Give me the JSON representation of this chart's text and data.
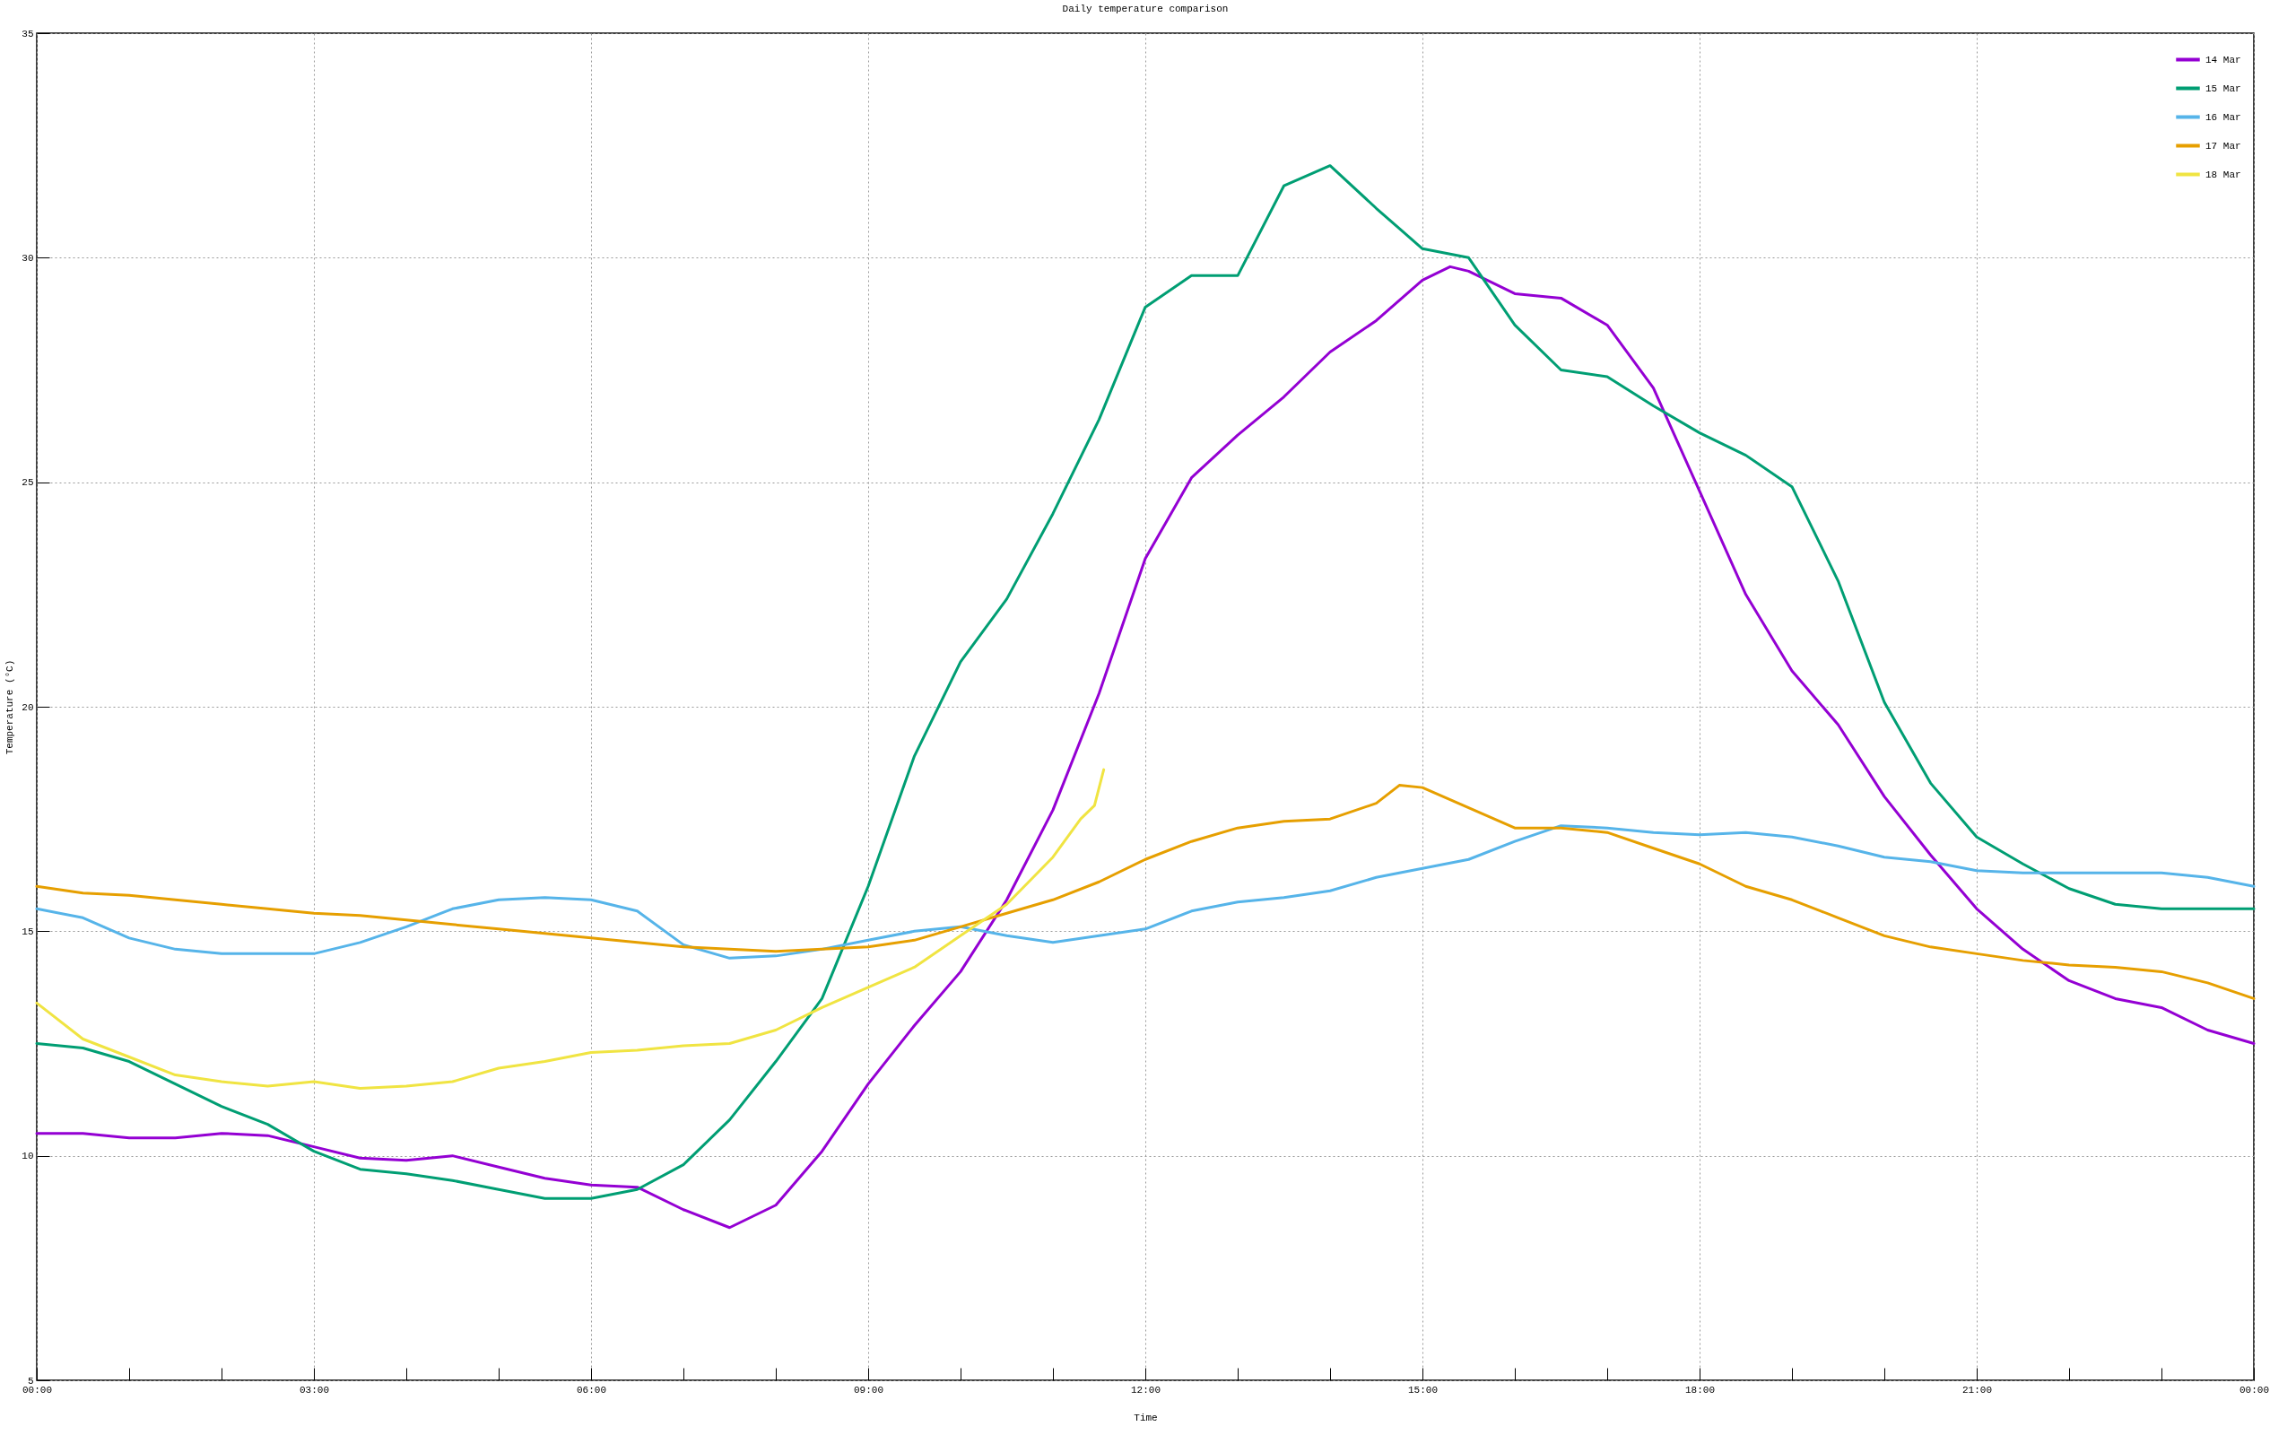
{
  "chart_data": {
    "type": "line",
    "title": "Daily temperature comparison",
    "xlabel": "Time",
    "ylabel": "Temperature (°C)",
    "xlim": [
      0,
      24
    ],
    "xticks": [
      {
        "value": 0,
        "label": "00:00"
      },
      {
        "value": 1,
        "label": null
      },
      {
        "value": 2,
        "label": null
      },
      {
        "value": 3,
        "label": "03:00"
      },
      {
        "value": 4,
        "label": null
      },
      {
        "value": 5,
        "label": null
      },
      {
        "value": 6,
        "label": "06:00"
      },
      {
        "value": 7,
        "label": null
      },
      {
        "value": 8,
        "label": null
      },
      {
        "value": 9,
        "label": "09:00"
      },
      {
        "value": 10,
        "label": null
      },
      {
        "value": 11,
        "label": null
      },
      {
        "value": 12,
        "label": "12:00"
      },
      {
        "value": 13,
        "label": null
      },
      {
        "value": 14,
        "label": null
      },
      {
        "value": 15,
        "label": "15:00"
      },
      {
        "value": 16,
        "label": null
      },
      {
        "value": 17,
        "label": null
      },
      {
        "value": 18,
        "label": "18:00"
      },
      {
        "value": 19,
        "label": null
      },
      {
        "value": 20,
        "label": null
      },
      {
        "value": 21,
        "label": "21:00"
      },
      {
        "value": 22,
        "label": null
      },
      {
        "value": 23,
        "label": null
      },
      {
        "value": 24,
        "label": "00:00"
      }
    ],
    "ylim": [
      5,
      35
    ],
    "yticks": [
      5,
      10,
      15,
      20,
      25,
      30,
      35
    ],
    "grid": true,
    "legend": "top right",
    "line_style": "solid",
    "series": [
      {
        "name": "14 Mar",
        "color": "#9400d3",
        "x": [
          0,
          0.5,
          1,
          1.5,
          2,
          2.5,
          3,
          3.5,
          4,
          4.5,
          5,
          5.5,
          6,
          6.5,
          7,
          7.5,
          8,
          8.5,
          9,
          9.5,
          10,
          10.5,
          11,
          11.5,
          12,
          12.5,
          13,
          13.5,
          14,
          14.5,
          15,
          15.3,
          15.5,
          16,
          16.5,
          17,
          17.5,
          18,
          18.5,
          19,
          19.5,
          20,
          20.5,
          21,
          21.5,
          22,
          22.5,
          23,
          23.5,
          24
        ],
        "values": [
          10.5,
          10.5,
          10.4,
          10.4,
          10.5,
          10.45,
          10.2,
          9.95,
          9.9,
          10.0,
          9.75,
          9.5,
          9.35,
          9.3,
          8.8,
          8.4,
          8.9,
          10.1,
          11.6,
          12.9,
          14.1,
          15.7,
          17.7,
          20.3,
          23.3,
          25.1,
          26.05,
          26.9,
          27.9,
          28.6,
          29.5,
          29.8,
          29.7,
          29.2,
          29.1,
          28.5,
          27.1,
          24.8,
          22.5,
          20.8,
          19.6,
          18.0,
          16.7,
          15.5,
          14.6,
          13.9,
          13.5,
          13.3,
          12.8,
          12.5
        ]
      },
      {
        "name": "15 Mar",
        "color": "#009e73",
        "x": [
          0,
          0.5,
          1,
          1.5,
          2,
          2.5,
          3,
          3.5,
          4,
          4.5,
          5,
          5.5,
          6,
          6.5,
          7,
          7.5,
          8,
          8.5,
          9,
          9.5,
          10,
          10.5,
          11,
          11.5,
          12,
          12.5,
          13,
          13.5,
          14,
          14.5,
          15,
          15.5,
          16,
          16.5,
          17,
          17.5,
          18,
          18.5,
          19,
          19.5,
          20,
          20.5,
          21,
          21.5,
          22,
          22.5,
          23,
          24
        ],
        "values": [
          12.5,
          12.4,
          12.1,
          11.6,
          11.1,
          10.7,
          10.1,
          9.7,
          9.6,
          9.45,
          9.25,
          9.05,
          9.05,
          9.25,
          9.8,
          10.8,
          12.1,
          13.5,
          16.0,
          18.9,
          21.0,
          22.4,
          24.3,
          26.4,
          28.9,
          29.6,
          29.6,
          31.6,
          32.05,
          31.1,
          30.2,
          30.0,
          28.5,
          27.5,
          27.35,
          26.7,
          26.1,
          25.6,
          24.9,
          22.8,
          20.1,
          18.3,
          17.1,
          16.5,
          15.95,
          15.6,
          15.5,
          15.5
        ]
      },
      {
        "name": "16 Mar",
        "color": "#56b4e9",
        "x": [
          0,
          0.5,
          1,
          1.5,
          2,
          2.5,
          3,
          3.5,
          4,
          4.5,
          5,
          5.5,
          6,
          6.5,
          7,
          7.5,
          8,
          8.5,
          9,
          9.5,
          10,
          10.5,
          11,
          11.5,
          12,
          12.5,
          13,
          13.5,
          14,
          14.5,
          15,
          15.5,
          16,
          16.5,
          17,
          17.5,
          18,
          18.5,
          19,
          19.5,
          20,
          20.5,
          21,
          21.5,
          22,
          22.5,
          23,
          23.5,
          24
        ],
        "values": [
          15.5,
          15.3,
          14.85,
          14.6,
          14.5,
          14.5,
          14.5,
          14.75,
          15.1,
          15.5,
          15.7,
          15.75,
          15.7,
          15.45,
          14.7,
          14.4,
          14.45,
          14.6,
          14.8,
          15.0,
          15.1,
          14.9,
          14.75,
          14.9,
          15.05,
          15.45,
          15.65,
          15.75,
          15.9,
          16.2,
          16.4,
          16.6,
          17.0,
          17.35,
          17.3,
          17.2,
          17.15,
          17.2,
          17.1,
          16.9,
          16.65,
          16.55,
          16.35,
          16.3,
          16.3,
          16.3,
          16.3,
          16.2,
          16.0
        ]
      },
      {
        "name": "17 Mar",
        "color": "#e69f00",
        "x": [
          0,
          0.5,
          1,
          1.5,
          2,
          2.5,
          3,
          3.5,
          4,
          4.5,
          5,
          5.5,
          6,
          6.5,
          7,
          7.5,
          8,
          8.5,
          9,
          9.5,
          10,
          10.5,
          11,
          11.5,
          12,
          12.5,
          13,
          13.5,
          14,
          14.5,
          14.75,
          15,
          15.5,
          16,
          16.5,
          17,
          17.5,
          18,
          18.5,
          19,
          19.5,
          20,
          20.5,
          21,
          21.5,
          22,
          22.5,
          23,
          23.5,
          24
        ],
        "values": [
          16.0,
          15.85,
          15.8,
          15.7,
          15.6,
          15.5,
          15.4,
          15.35,
          15.25,
          15.15,
          15.05,
          14.95,
          14.85,
          14.75,
          14.65,
          14.6,
          14.55,
          14.6,
          14.65,
          14.8,
          15.1,
          15.4,
          15.7,
          16.1,
          16.6,
          17.0,
          17.3,
          17.45,
          17.5,
          17.85,
          18.25,
          18.2,
          17.75,
          17.3,
          17.3,
          17.2,
          16.85,
          16.5,
          16.0,
          15.7,
          15.3,
          14.9,
          14.65,
          14.5,
          14.35,
          14.25,
          14.2,
          14.1,
          13.85,
          13.5
        ]
      },
      {
        "name": "18 Mar",
        "color": "#f0e442",
        "x": [
          0,
          0.5,
          1,
          1.5,
          2,
          2.5,
          3,
          3.5,
          4,
          4.5,
          5,
          5.5,
          6,
          6.5,
          7,
          7.5,
          8,
          8.5,
          9,
          9.5,
          10,
          10.5,
          11,
          11.3,
          11.45,
          11.55
        ],
        "values": [
          13.4,
          12.6,
          12.2,
          11.8,
          11.65,
          11.55,
          11.65,
          11.5,
          11.55,
          11.65,
          11.95,
          12.1,
          12.3,
          12.35,
          12.45,
          12.5,
          12.8,
          13.3,
          13.75,
          14.2,
          14.9,
          15.6,
          16.65,
          17.5,
          17.8,
          18.6
        ]
      }
    ]
  }
}
